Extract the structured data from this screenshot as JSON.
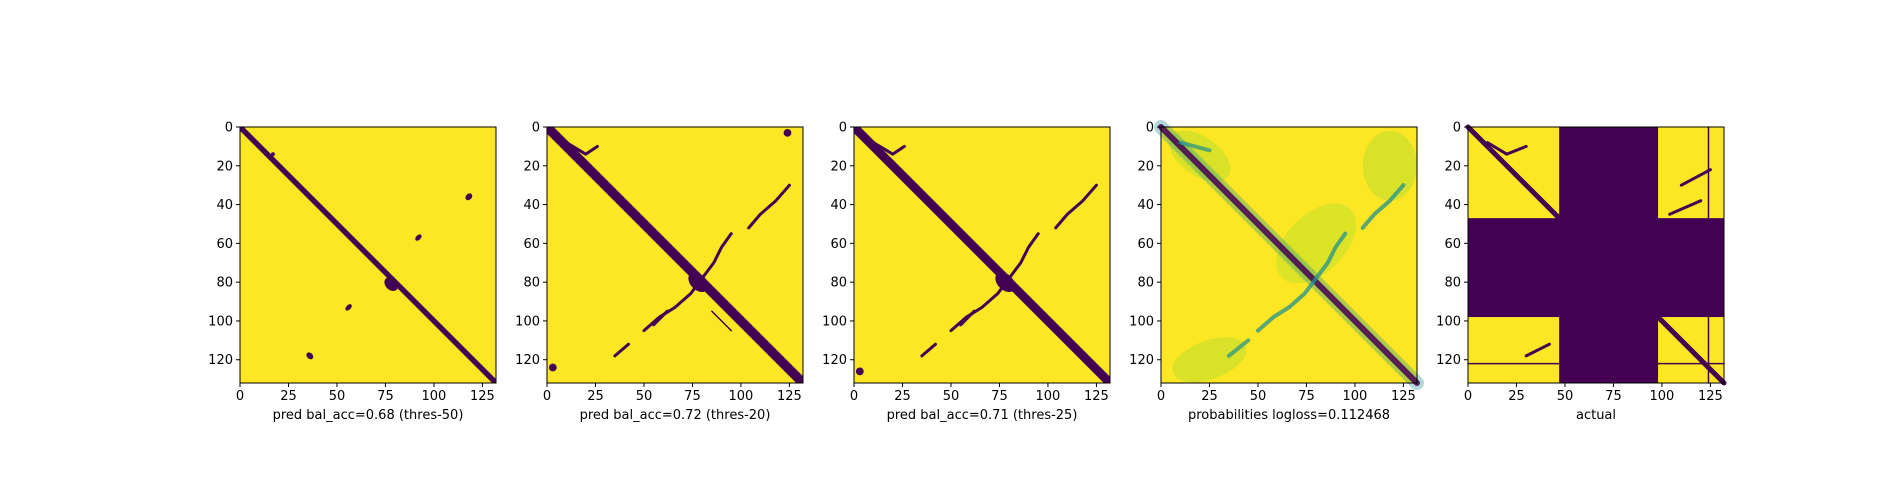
{
  "colors": {
    "yellow": "#fde725",
    "purple": "#440154",
    "mid_teal": "#21918c",
    "light_green": "#b5de2b"
  },
  "chart_data": [
    {
      "type": "heatmap",
      "title": "",
      "xlabel": "pred bal_acc=0.68 (thres-50)",
      "ylabel": "",
      "xlim": [
        0,
        132
      ],
      "ylim": [
        132,
        0
      ],
      "xticks": [
        "0",
        "25",
        "50",
        "75",
        "100",
        "125"
      ],
      "yticks": [
        "0",
        "20",
        "40",
        "60",
        "80",
        "100",
        "120"
      ],
      "matrix_size": 132,
      "value_range": [
        0,
        1
      ],
      "colormap": "viridis",
      "description_values": {
        "diagonal_band_width": 2,
        "off_diagonal_contacts": "sparse"
      }
    },
    {
      "type": "heatmap",
      "title": "",
      "xlabel": "pred bal_acc=0.72 (thres-20)",
      "ylabel": "",
      "xlim": [
        0,
        132
      ],
      "ylim": [
        132,
        0
      ],
      "xticks": [
        "0",
        "25",
        "50",
        "75",
        "100",
        "125"
      ],
      "yticks": [
        "0",
        "20",
        "40",
        "60",
        "80",
        "100",
        "120"
      ],
      "matrix_size": 132,
      "value_range": [
        0,
        1
      ],
      "colormap": "viridis",
      "description_values": {
        "diagonal_band_width": 4,
        "off_diagonal_contacts": "many"
      }
    },
    {
      "type": "heatmap",
      "title": "",
      "xlabel": "pred bal_acc=0.71 (thres-25)",
      "ylabel": "",
      "xlim": [
        0,
        132
      ],
      "ylim": [
        132,
        0
      ],
      "xticks": [
        "0",
        "25",
        "50",
        "75",
        "100",
        "125"
      ],
      "yticks": [
        "0",
        "20",
        "40",
        "60",
        "80",
        "100",
        "120"
      ],
      "matrix_size": 132,
      "value_range": [
        0,
        1
      ],
      "colormap": "viridis",
      "description_values": {
        "diagonal_band_width": 4,
        "off_diagonal_contacts": "moderate"
      }
    },
    {
      "type": "heatmap",
      "title": "",
      "xlabel": "probabilities logloss=0.112468",
      "ylabel": "",
      "xlim": [
        0,
        132
      ],
      "ylim": [
        132,
        0
      ],
      "xticks": [
        "0",
        "25",
        "50",
        "75",
        "100",
        "125"
      ],
      "yticks": [
        "0",
        "20",
        "40",
        "60",
        "80",
        "100",
        "120"
      ],
      "matrix_size": 132,
      "value_range": [
        0,
        1
      ],
      "colormap": "viridis",
      "description_values": {
        "diagonal_band_width": 4,
        "off_diagonal_contacts": "continuous"
      }
    },
    {
      "type": "heatmap",
      "title": "",
      "xlabel": "actual",
      "ylabel": "",
      "xlim": [
        0,
        132
      ],
      "ylim": [
        132,
        0
      ],
      "xticks": [
        "0",
        "25",
        "50",
        "75",
        "100",
        "125"
      ],
      "yticks": [
        "0",
        "20",
        "40",
        "60",
        "80",
        "100",
        "120"
      ],
      "matrix_size": 132,
      "value_range": [
        0,
        1
      ],
      "colormap": "viridis",
      "masked_rows": [
        47,
        98
      ],
      "masked_cols": [
        47,
        98
      ]
    }
  ]
}
